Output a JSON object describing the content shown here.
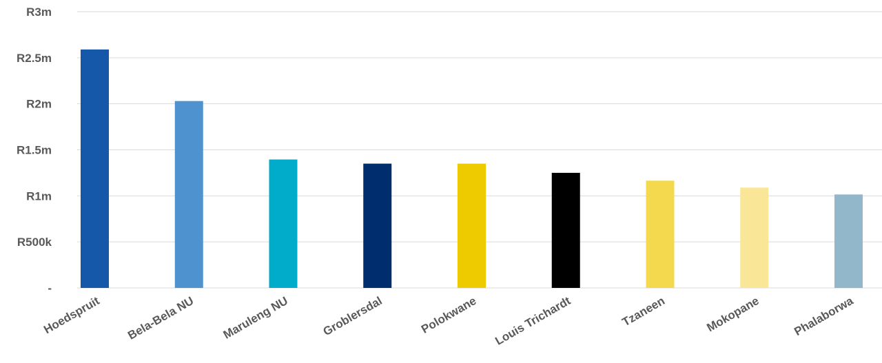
{
  "chart_data": {
    "type": "bar",
    "title": "",
    "xlabel": "",
    "ylabel": "",
    "categories": [
      "Hoedspruit",
      "Bela-Bela NU",
      "Maruleng NU",
      "Groblersdal",
      "Polokwane",
      "Louis Trichardt",
      "Tzaneen",
      "Mokopane",
      "Phalaborwa"
    ],
    "values": [
      2590000,
      2030000,
      1395000,
      1350000,
      1350000,
      1250000,
      1165000,
      1090000,
      1015000
    ],
    "colors": [
      "#1557a8",
      "#4e93d0",
      "#00acca",
      "#002d6e",
      "#eecb00",
      "#000000",
      "#f4d94f",
      "#f9e797",
      "#93b7ca"
    ],
    "ylim": [
      0,
      3000000
    ],
    "yticks": [
      0,
      500000,
      1000000,
      1500000,
      2000000,
      2500000,
      3000000
    ],
    "ytick_labels": [
      "-",
      "R500k",
      "R1m",
      "R1.5m",
      "R2m",
      "R2.5m",
      "R3m"
    ],
    "grid": true,
    "legend": "none"
  }
}
